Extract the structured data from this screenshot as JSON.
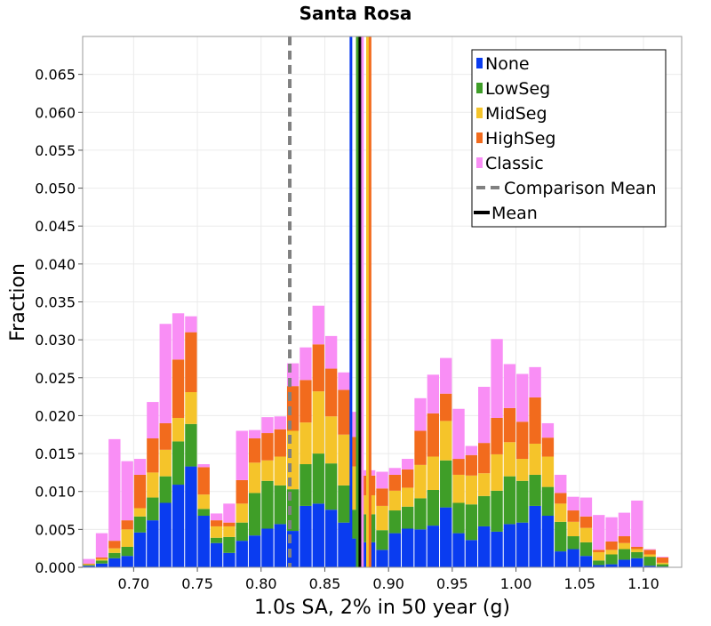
{
  "chart_data": {
    "type": "bar",
    "stacked": true,
    "title": "Santa Rosa",
    "xlabel": "1.0s SA, 2% in 50 year (g)",
    "ylabel": "Fraction",
    "xlim": [
      0.66,
      1.13
    ],
    "ylim": [
      0,
      0.07
    ],
    "grid": true,
    "legend_position": "top-right",
    "bin_width": 0.01,
    "xticks": [
      "0.70",
      "0.75",
      "0.80",
      "0.85",
      "0.90",
      "0.95",
      "1.00",
      "1.05",
      "1.10"
    ],
    "yticks": [
      "0.000",
      "0.005",
      "0.010",
      "0.015",
      "0.020",
      "0.025",
      "0.030",
      "0.035",
      "0.040",
      "0.045",
      "0.050",
      "0.055",
      "0.060",
      "0.065"
    ],
    "x": [
      0.665,
      0.675,
      0.685,
      0.695,
      0.705,
      0.715,
      0.725,
      0.735,
      0.745,
      0.755,
      0.765,
      0.775,
      0.785,
      0.795,
      0.805,
      0.815,
      0.825,
      0.835,
      0.845,
      0.855,
      0.865,
      0.875,
      0.885,
      0.895,
      0.905,
      0.915,
      0.925,
      0.935,
      0.945,
      0.955,
      0.965,
      0.975,
      0.985,
      0.995,
      1.005,
      1.015,
      1.025,
      1.035,
      1.045,
      1.055,
      1.065,
      1.075,
      1.085,
      1.095,
      1.105,
      1.115
    ],
    "series": [
      {
        "name": "None",
        "color": "#0a3cf0",
        "values": [
          0.0002,
          0.0005,
          0.0012,
          0.0015,
          0.0046,
          0.0062,
          0.0085,
          0.0109,
          0.0133,
          0.0068,
          0.0032,
          0.0019,
          0.0035,
          0.0042,
          0.0051,
          0.0057,
          0.0048,
          0.0081,
          0.0084,
          0.0076,
          0.0059,
          0.0038,
          0.0033,
          0.0023,
          0.0045,
          0.0051,
          0.005,
          0.0055,
          0.0079,
          0.0045,
          0.0036,
          0.0054,
          0.0047,
          0.0057,
          0.0059,
          0.0081,
          0.0068,
          0.0021,
          0.0024,
          0.0015,
          0.0003,
          0.0004,
          0.001,
          0.0012,
          0.0002,
          0.0001
        ]
      },
      {
        "name": "LowSeg",
        "color": "#3f9e28",
        "values": [
          0.0001,
          0.0004,
          0.0007,
          0.0012,
          0.0021,
          0.003,
          0.0035,
          0.0057,
          0.0056,
          0.0009,
          0.0007,
          0.0021,
          0.0024,
          0.0056,
          0.0063,
          0.0051,
          0.0055,
          0.0055,
          0.0066,
          0.0061,
          0.0049,
          0.0038,
          0.0037,
          0.0026,
          0.003,
          0.0029,
          0.0041,
          0.0047,
          0.0062,
          0.004,
          0.0047,
          0.004,
          0.0054,
          0.0063,
          0.0055,
          0.0041,
          0.0038,
          0.0039,
          0.0017,
          0.0018,
          0.0006,
          0.0013,
          0.0014,
          0.0008,
          0.0012,
          0.0003
        ]
      },
      {
        "name": "MidSeg",
        "color": "#f5c42a",
        "values": [
          0.0001,
          0.0002,
          0.0006,
          0.0023,
          0.0011,
          0.0033,
          0.0035,
          0.0031,
          0.0042,
          0.0019,
          0.0015,
          0.0014,
          0.0025,
          0.004,
          0.0027,
          0.0038,
          0.0077,
          0.0055,
          0.0082,
          0.0062,
          0.0067,
          0.0057,
          0.0025,
          0.0032,
          0.0026,
          0.0025,
          0.0044,
          0.0044,
          0.0052,
          0.0037,
          0.0038,
          0.003,
          0.0048,
          0.0045,
          0.0029,
          0.0041,
          0.004,
          0.0024,
          0.0019,
          0.0019,
          0.0011,
          0.0006,
          0.0008,
          0.0004,
          0.0003,
          0.0002
        ]
      },
      {
        "name": "HighSeg",
        "color": "#f26b1d",
        "values": [
          0.0001,
          0.0002,
          0.001,
          0.0012,
          0.0044,
          0.0045,
          0.0035,
          0.0077,
          0.0079,
          0.0036,
          0.0008,
          0.0005,
          0.0031,
          0.0032,
          0.0036,
          0.0036,
          0.0059,
          0.0056,
          0.0062,
          0.0063,
          0.0059,
          0.0039,
          0.0026,
          0.0023,
          0.0021,
          0.0024,
          0.0045,
          0.0057,
          0.0036,
          0.0021,
          0.0027,
          0.004,
          0.0048,
          0.0045,
          0.0049,
          0.0061,
          0.0025,
          0.0014,
          0.0015,
          0.0015,
          0.0003,
          0.0011,
          0.0009,
          0.0003,
          0.0006,
          0.0007
        ]
      },
      {
        "name": "Classic",
        "color": "#f98ef5",
        "values": [
          0.0006,
          0.0032,
          0.0134,
          0.0078,
          0.0021,
          0.0048,
          0.0131,
          0.0061,
          0.0021,
          0.0004,
          0.0009,
          0.0025,
          0.0065,
          0.0011,
          0.0021,
          0.0017,
          0.003,
          0.0043,
          0.0051,
          0.0043,
          0.0023,
          0.0033,
          0.0007,
          0.0022,
          0.0009,
          0.0014,
          0.0043,
          0.0051,
          0.0047,
          0.0066,
          0.0012,
          0.0074,
          0.0104,
          0.0058,
          0.0063,
          0.004,
          0.0019,
          0.0024,
          0.0018,
          0.0025,
          0.0046,
          0.0032,
          0.0031,
          0.0061,
          0.0001,
          0.0001
        ]
      }
    ],
    "lines": [
      {
        "name": "Comparison Mean",
        "x": 0.8225,
        "color": "#808080",
        "style": "dashed"
      },
      {
        "name": "None mean",
        "x": 0.8705,
        "color": "#0a3cf0",
        "style": "solid"
      },
      {
        "name": "LowSeg mean",
        "x": 0.8755,
        "color": "#3f9e28",
        "style": "solid"
      },
      {
        "name": "Classic mean",
        "x": 0.8795,
        "color": "#f98ef5",
        "style": "solid"
      },
      {
        "name": "Mean",
        "x": 0.8775,
        "color": "#000000",
        "style": "solid"
      },
      {
        "name": "MidSeg mean",
        "x": 0.8835,
        "color": "#f5c42a",
        "style": "solid"
      },
      {
        "name": "HighSeg mean",
        "x": 0.8855,
        "color": "#f26b1d",
        "style": "solid"
      }
    ],
    "legend": [
      {
        "label": "None",
        "color": "#0a3cf0",
        "kind": "box"
      },
      {
        "label": "LowSeg",
        "color": "#3f9e28",
        "kind": "box"
      },
      {
        "label": "MidSeg",
        "color": "#f5c42a",
        "kind": "box"
      },
      {
        "label": "HighSeg",
        "color": "#f26b1d",
        "kind": "box"
      },
      {
        "label": "Classic",
        "color": "#f98ef5",
        "kind": "box"
      },
      {
        "label": "Comparison Mean",
        "color": "#808080",
        "kind": "dashed"
      },
      {
        "label": "Mean",
        "color": "#000000",
        "kind": "line"
      }
    ]
  }
}
